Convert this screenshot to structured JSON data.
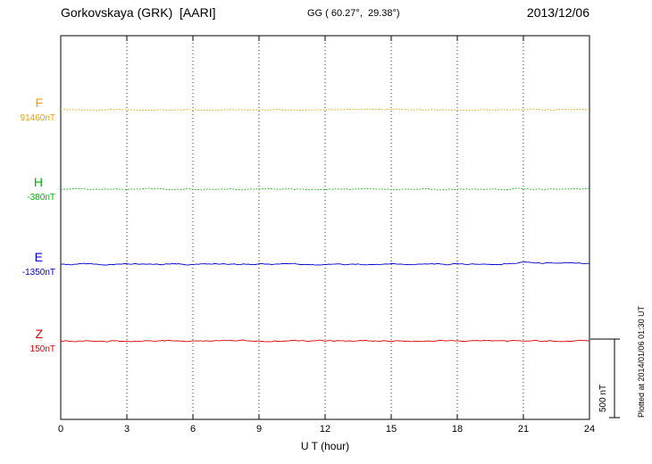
{
  "header": {
    "station": "Gorkovskaya (GRK)  [AARI]",
    "coords": "GG ( 60.27°,  29.38°)",
    "date": "2013/12/06"
  },
  "footer": {
    "plotted_at": "Plotted at 2014/01/06 01:30 UT"
  },
  "scale_bar": {
    "label": "500 nT",
    "nT": 500
  },
  "chart_data": {
    "type": "line",
    "title": "Gorkovskaya (GRK)  [AARI]",
    "xlabel": "U T (hour)",
    "x_range": [
      0,
      24
    ],
    "x_ticks": [
      0,
      3,
      6,
      9,
      12,
      15,
      18,
      21,
      24
    ],
    "grid": "dotted-vertical",
    "legend_position": "left-stacked",
    "hours": [
      0,
      1,
      2,
      3,
      4,
      5,
      6,
      7,
      8,
      9,
      10,
      11,
      12,
      13,
      14,
      15,
      16,
      17,
      18,
      19,
      20,
      21,
      22,
      23,
      24
    ],
    "series": [
      {
        "name": "F",
        "base_label": "91460nT",
        "base_value": 91460,
        "unit": "nT",
        "color": "#f0a000",
        "dotted": true,
        "values": [
          91460,
          91460,
          91460,
          91460,
          91460,
          91460,
          91460,
          91460,
          91460,
          91460,
          91460,
          91460,
          91460,
          91460,
          91460,
          91460,
          91460,
          91460,
          91460,
          91460,
          91460,
          91460,
          91460,
          91460,
          91460
        ]
      },
      {
        "name": "H",
        "base_label": "-380nT",
        "base_value": -380,
        "unit": "nT",
        "color": "#00b400",
        "dotted": true,
        "values": [
          -380,
          -380,
          -380,
          -380,
          -380,
          -380,
          -380,
          -380,
          -380,
          -380,
          -380,
          -380,
          -380,
          -380,
          -380,
          -380,
          -380,
          -380,
          -380,
          -380,
          -380,
          -380,
          -380,
          -380,
          -380
        ]
      },
      {
        "name": "E",
        "base_label": "-1350nT",
        "base_value": -1350,
        "unit": "nT",
        "color": "#0000d0",
        "dotted": false,
        "values": [
          -1350,
          -1350,
          -1350,
          -1350,
          -1350,
          -1350,
          -1350,
          -1350,
          -1350,
          -1350,
          -1350,
          -1352,
          -1351,
          -1350,
          -1350,
          -1350,
          -1350,
          -1350,
          -1350,
          -1350,
          -1350,
          -1338,
          -1344,
          -1340,
          -1346
        ]
      },
      {
        "name": "Z",
        "base_label": "150nT",
        "base_value": 150,
        "unit": "nT",
        "color": "#e00000",
        "dotted": false,
        "values": [
          150,
          150,
          150,
          150,
          150,
          150,
          150,
          150,
          150,
          150,
          150,
          150,
          150,
          150,
          150,
          150,
          150,
          150,
          150,
          150,
          150,
          150,
          150,
          150,
          150
        ]
      }
    ]
  }
}
